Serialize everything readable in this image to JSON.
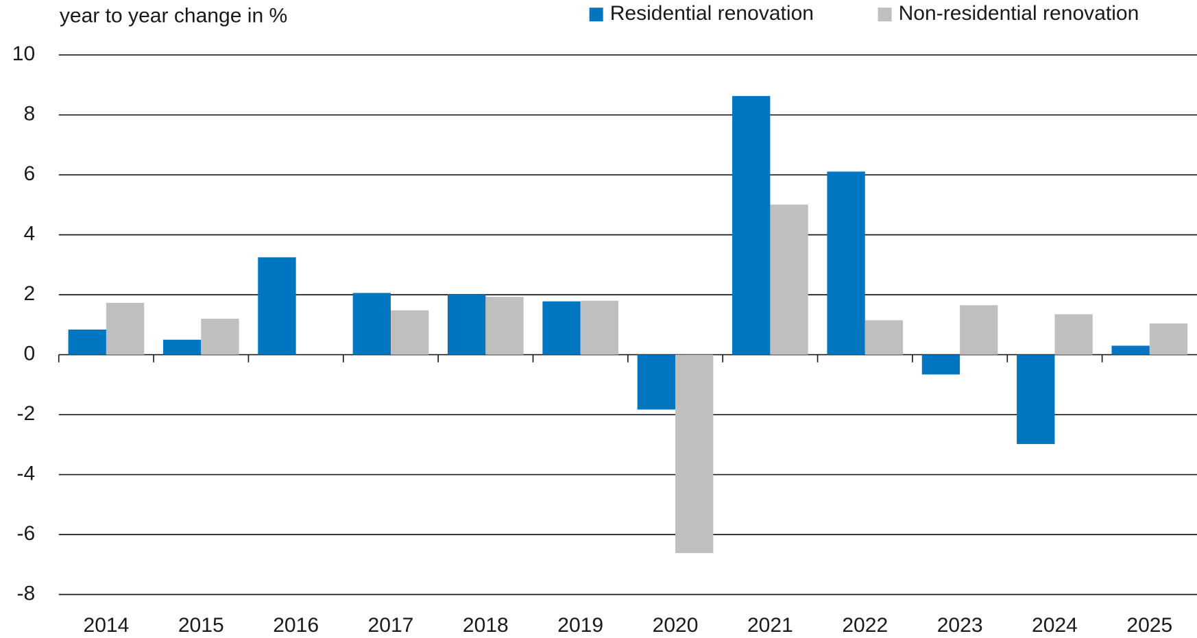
{
  "chart_data": {
    "type": "bar",
    "y_axis_label": "year to year change in %",
    "categories": [
      "2014",
      "2015",
      "2016",
      "2017",
      "2018",
      "2019",
      "2020",
      "2021",
      "2022",
      "2023",
      "2024",
      "2025"
    ],
    "series": [
      {
        "name": "Residential renovation",
        "color": "#0076c0",
        "values": [
          0.84,
          0.5,
          3.25,
          2.06,
          2.0,
          1.78,
          -1.83,
          8.63,
          6.11,
          -0.66,
          -2.98,
          0.3
        ]
      },
      {
        "name": "Non-residential renovation",
        "color": "#bfbfbf",
        "values": [
          1.73,
          1.2,
          0,
          1.48,
          1.93,
          1.8,
          -6.62,
          5.01,
          1.15,
          1.65,
          1.35,
          1.04
        ]
      }
    ],
    "ylim": [
      -8,
      10
    ],
    "yticks": [
      -8,
      -6,
      -4,
      -2,
      0,
      2,
      4,
      6,
      8,
      10
    ],
    "grid": true,
    "legend": "top-right"
  }
}
